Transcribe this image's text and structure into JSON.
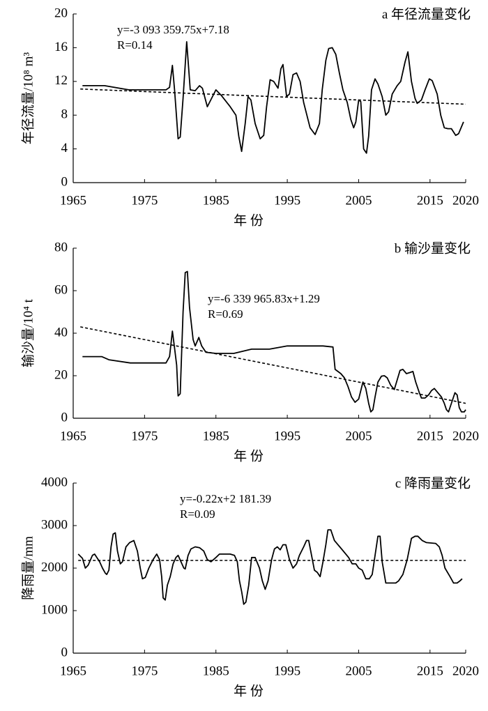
{
  "chart_data": [
    {
      "type": "line",
      "title": "a 年径流量变化",
      "annotations": [
        "y=-3 093 359.75x+7.18",
        "R=0.14"
      ],
      "y_label": "年径流量/10⁸ m³",
      "x_label": "年 份",
      "xlim": [
        1965,
        2020
      ],
      "xticks": [
        1965,
        1975,
        1985,
        1995,
        2005,
        2015,
        2020
      ],
      "ylim": [
        0,
        20
      ],
      "yticks": [
        0,
        4,
        8,
        12,
        16,
        20
      ],
      "series": [
        {
          "color": "#000000",
          "style": "solid",
          "x": [
            1966.3,
            1969.4,
            1972.8,
            1978,
            1978.5,
            1978.9,
            1979.2,
            1979.7,
            1980,
            1980.4,
            1980.9,
            1981.4,
            1982.1,
            1982.7,
            1983.1,
            1983.8,
            1985,
            1985.8,
            1987,
            1987.8,
            1988.2,
            1988.6,
            1989.1,
            1989.5,
            1989.9,
            1990.5,
            1991.2,
            1991.7,
            1992.1,
            1992.6,
            1993.1,
            1993.7,
            1994.1,
            1994.4,
            1994.9,
            1995.3,
            1995.8,
            1996.3,
            1996.8,
            1997.3,
            1998.2,
            1998.9,
            1999.5,
            1999.9,
            2000.4,
            2000.8,
            2001.3,
            2001.8,
            2002.3,
            2002.8,
            2003.4,
            2003.9,
            2004.3,
            2004.6,
            2005,
            2005.3,
            2005.7,
            2006.1,
            2006.4,
            2006.8,
            2007.3,
            2007.7,
            2008.3,
            2008.8,
            2009.2,
            2009.7,
            2010.4,
            2010.9,
            2011.5,
            2011.9,
            2012.4,
            2012.9,
            2013.2,
            2013.8,
            2014.3,
            2014.9,
            2015.3,
            2016,
            2016.5,
            2017,
            2017.5,
            2018,
            2018.6,
            2019,
            2019.7
          ],
          "values": [
            11.5,
            11.5,
            11.0,
            11.0,
            11.3,
            13.9,
            11,
            5.2,
            5.4,
            10,
            16.7,
            11,
            10.9,
            11.5,
            11.2,
            9.0,
            11.0,
            10.3,
            9.0,
            8.0,
            5.5,
            3.7,
            7,
            10.2,
            9.8,
            7.0,
            5.2,
            5.6,
            9.0,
            12.2,
            12.0,
            11.2,
            13.5,
            14.0,
            10.2,
            10.5,
            12.8,
            13.0,
            12.0,
            9.5,
            6.5,
            5.7,
            7.0,
            11,
            14.5,
            15.9,
            16.0,
            15.2,
            13,
            11,
            9.5,
            7.5,
            6.5,
            7.2,
            9.8,
            9.6,
            4,
            3.5,
            5.5,
            11,
            12.3,
            11.7,
            10.2,
            8,
            8.4,
            10.5,
            11.5,
            12.0,
            14.3,
            15.5,
            12,
            10.0,
            9.4,
            9.8,
            11,
            12.3,
            12.1,
            10.5,
            8,
            6.5,
            6.4,
            6.4,
            5.6,
            5.8,
            7.2
          ]
        },
        {
          "color": "#000000",
          "style": "dashed",
          "x": [
            1966,
            2020
          ],
          "values": [
            11.1,
            9.3
          ]
        }
      ]
    },
    {
      "type": "line",
      "title": "b 输沙量变化",
      "annotations": [
        "y=-6 339 965.83x+1.29",
        "R=0.69"
      ],
      "y_label": "输沙量/10⁴ t",
      "x_label": "年 份",
      "xlim": [
        1965,
        2020
      ],
      "xticks": [
        1965,
        1975,
        1985,
        1995,
        2005,
        2015,
        2020
      ],
      "ylim": [
        0,
        80
      ],
      "yticks": [
        0,
        20,
        40,
        60,
        80
      ],
      "series": [
        {
          "color": "#000000",
          "style": "solid",
          "x": [
            1966.3,
            1969,
            1970,
            1973,
            1978,
            1978.5,
            1978.9,
            1979.2,
            1979.5,
            1979.7,
            1980,
            1980.4,
            1980.7,
            1981,
            1981.3,
            1981.8,
            1982.1,
            1982.6,
            1983,
            1983.6,
            1985,
            1987.5,
            1990,
            1992.5,
            1995,
            2000,
            2001.4,
            2001.7,
            2002.5,
            2003,
            2003.5,
            2004,
            2004.5,
            2005,
            2005.6,
            2006,
            2006.4,
            2006.7,
            2007,
            2007.3,
            2007.7,
            2008.2,
            2008.6,
            2009,
            2009.5,
            2010,
            2010.4,
            2010.8,
            2011.2,
            2011.7,
            2012.2,
            2012.6,
            2013,
            2013.5,
            2013.8,
            2014.3,
            2014.8,
            2015.2,
            2015.6,
            2016.1,
            2016.6,
            2017,
            2017.3,
            2017.6,
            2018,
            2018.5,
            2018.8,
            2019.1,
            2019.4,
            2019.8,
            2020
          ],
          "values": [
            29,
            29,
            27.5,
            26,
            26,
            29,
            41,
            33,
            25,
            10.5,
            11.5,
            50,
            68.5,
            69,
            52,
            37,
            34,
            38,
            34,
            31,
            30.5,
            30.5,
            32.5,
            32.5,
            34,
            34,
            33.5,
            23,
            21,
            19,
            15,
            10,
            7.5,
            9,
            17,
            14,
            7,
            3,
            4,
            10,
            17,
            19.8,
            20,
            19,
            15.5,
            13.5,
            18,
            22.5,
            23,
            21,
            21.5,
            22,
            17,
            12,
            9.5,
            9.5,
            11,
            13,
            14,
            12,
            10,
            7,
            4,
            3,
            7,
            12,
            11,
            5,
            3,
            3,
            4
          ]
        },
        {
          "color": "#000000",
          "style": "dashed",
          "x": [
            1966,
            2020
          ],
          "values": [
            43,
            7
          ]
        }
      ]
    },
    {
      "type": "line",
      "title": "c 降雨量变化",
      "annotations": [
        "y=-0.22x+2 181.39",
        "R=0.09"
      ],
      "y_label": "降雨量/mm",
      "x_label": "年 份",
      "xlim": [
        1965,
        2020
      ],
      "xticks": [
        1965,
        1975,
        1985,
        1995,
        2005,
        2015,
        2020
      ],
      "ylim": [
        0,
        4000
      ],
      "yticks": [
        0,
        1000,
        2000,
        3000,
        4000
      ],
      "series": [
        {
          "color": "#000000",
          "style": "solid",
          "x": [
            1965.7,
            1966.3,
            1966.7,
            1967.1,
            1967.7,
            1968,
            1968.7,
            1969.1,
            1969.5,
            1969.7,
            1970,
            1970.3,
            1970.6,
            1970.9,
            1971.2,
            1971.6,
            1971.9,
            1972.4,
            1972.9,
            1973.5,
            1974,
            1974.4,
            1974.7,
            1975.1,
            1975.6,
            1976.2,
            1976.7,
            1977.1,
            1977.4,
            1977.6,
            1977.9,
            1978.2,
            1978.6,
            1979,
            1979.4,
            1979.7,
            1980.1,
            1980.5,
            1980.7,
            1981.1,
            1981.5,
            1982.1,
            1982.7,
            1983.3,
            1983.8,
            1984.3,
            1985,
            1985.5,
            1987,
            1987.6,
            1988,
            1988.3,
            1988.6,
            1988.9,
            1989.2,
            1989.6,
            1990,
            1990.5,
            1991.1,
            1991.5,
            1991.9,
            1992.3,
            1992.8,
            1993.2,
            1993.6,
            1994,
            1994.4,
            1994.8,
            1995.3,
            1995.8,
            1996.3,
            1996.7,
            1997.3,
            1997.7,
            1998,
            1998.4,
            1998.8,
            1999.2,
            1999.6,
            2000,
            2000.4,
            2000.7,
            2001.1,
            2001.6,
            2002.6,
            2003.6,
            2004.1,
            2004.6,
            2005,
            2005.5,
            2006,
            2006.5,
            2006.9,
            2007.3,
            2007.7,
            2008,
            2008.3,
            2008.8,
            2010.2,
            2010.6,
            2011.2,
            2011.8,
            2012.4,
            2012.9,
            2013.3,
            2013.9,
            2014.5,
            2015.8,
            2016.3,
            2016.7,
            2017.1,
            2017.8,
            2018.3,
            2018.8,
            2019.2,
            2019.5
          ],
          "values": [
            2330,
            2230,
            2000,
            2070,
            2300,
            2330,
            2150,
            2000,
            1880,
            1850,
            1950,
            2500,
            2800,
            2830,
            2400,
            2100,
            2150,
            2500,
            2600,
            2650,
            2400,
            2000,
            1750,
            1780,
            2000,
            2200,
            2330,
            2200,
            1800,
            1300,
            1250,
            1600,
            1800,
            2100,
            2250,
            2300,
            2150,
            2000,
            1980,
            2300,
            2450,
            2500,
            2480,
            2400,
            2200,
            2150,
            2250,
            2330,
            2330,
            2300,
            2150,
            1700,
            1450,
            1150,
            1200,
            1600,
            2250,
            2250,
            2000,
            1700,
            1500,
            1700,
            2200,
            2450,
            2500,
            2430,
            2550,
            2550,
            2200,
            2000,
            2100,
            2300,
            2500,
            2650,
            2650,
            2300,
            1950,
            1900,
            1800,
            2150,
            2550,
            2900,
            2900,
            2650,
            2450,
            2250,
            2100,
            2100,
            2000,
            1950,
            1750,
            1750,
            1850,
            2300,
            2750,
            2750,
            2150,
            1650,
            1650,
            1700,
            1850,
            2200,
            2700,
            2750,
            2750,
            2650,
            2600,
            2580,
            2500,
            2300,
            2000,
            1800,
            1650,
            1650,
            1700,
            1750
          ]
        },
        {
          "color": "#000000",
          "style": "dashed",
          "x": [
            1965.7,
            2020
          ],
          "values": [
            2180,
            2180
          ]
        }
      ]
    }
  ]
}
